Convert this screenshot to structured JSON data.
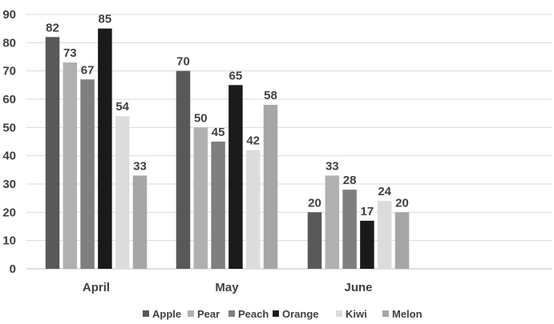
{
  "chart_data": {
    "type": "bar",
    "title": "",
    "xlabel": "",
    "ylabel": "",
    "ylim": [
      0,
      90
    ],
    "yticks": [
      0,
      10,
      20,
      30,
      40,
      50,
      60,
      70,
      80,
      90
    ],
    "grid": true,
    "legend_position": "bottom",
    "categories": [
      "April",
      "May",
      "June"
    ],
    "series": [
      {
        "name": "Apple",
        "color": "#595959",
        "values": [
          82,
          70,
          20
        ]
      },
      {
        "name": "Pear",
        "color": "#b0b0b0",
        "values": [
          73,
          50,
          33
        ]
      },
      {
        "name": "Peach",
        "color": "#7f7f7f",
        "values": [
          67,
          45,
          28
        ]
      },
      {
        "name": "Orange",
        "color": "#1a1a1a",
        "values": [
          85,
          65,
          17
        ]
      },
      {
        "name": "Kiwi",
        "color": "#dcdcdc",
        "values": [
          54,
          42,
          24
        ]
      },
      {
        "name": "Melon",
        "color": "#a6a6a6",
        "values": [
          33,
          58,
          20
        ]
      }
    ]
  }
}
